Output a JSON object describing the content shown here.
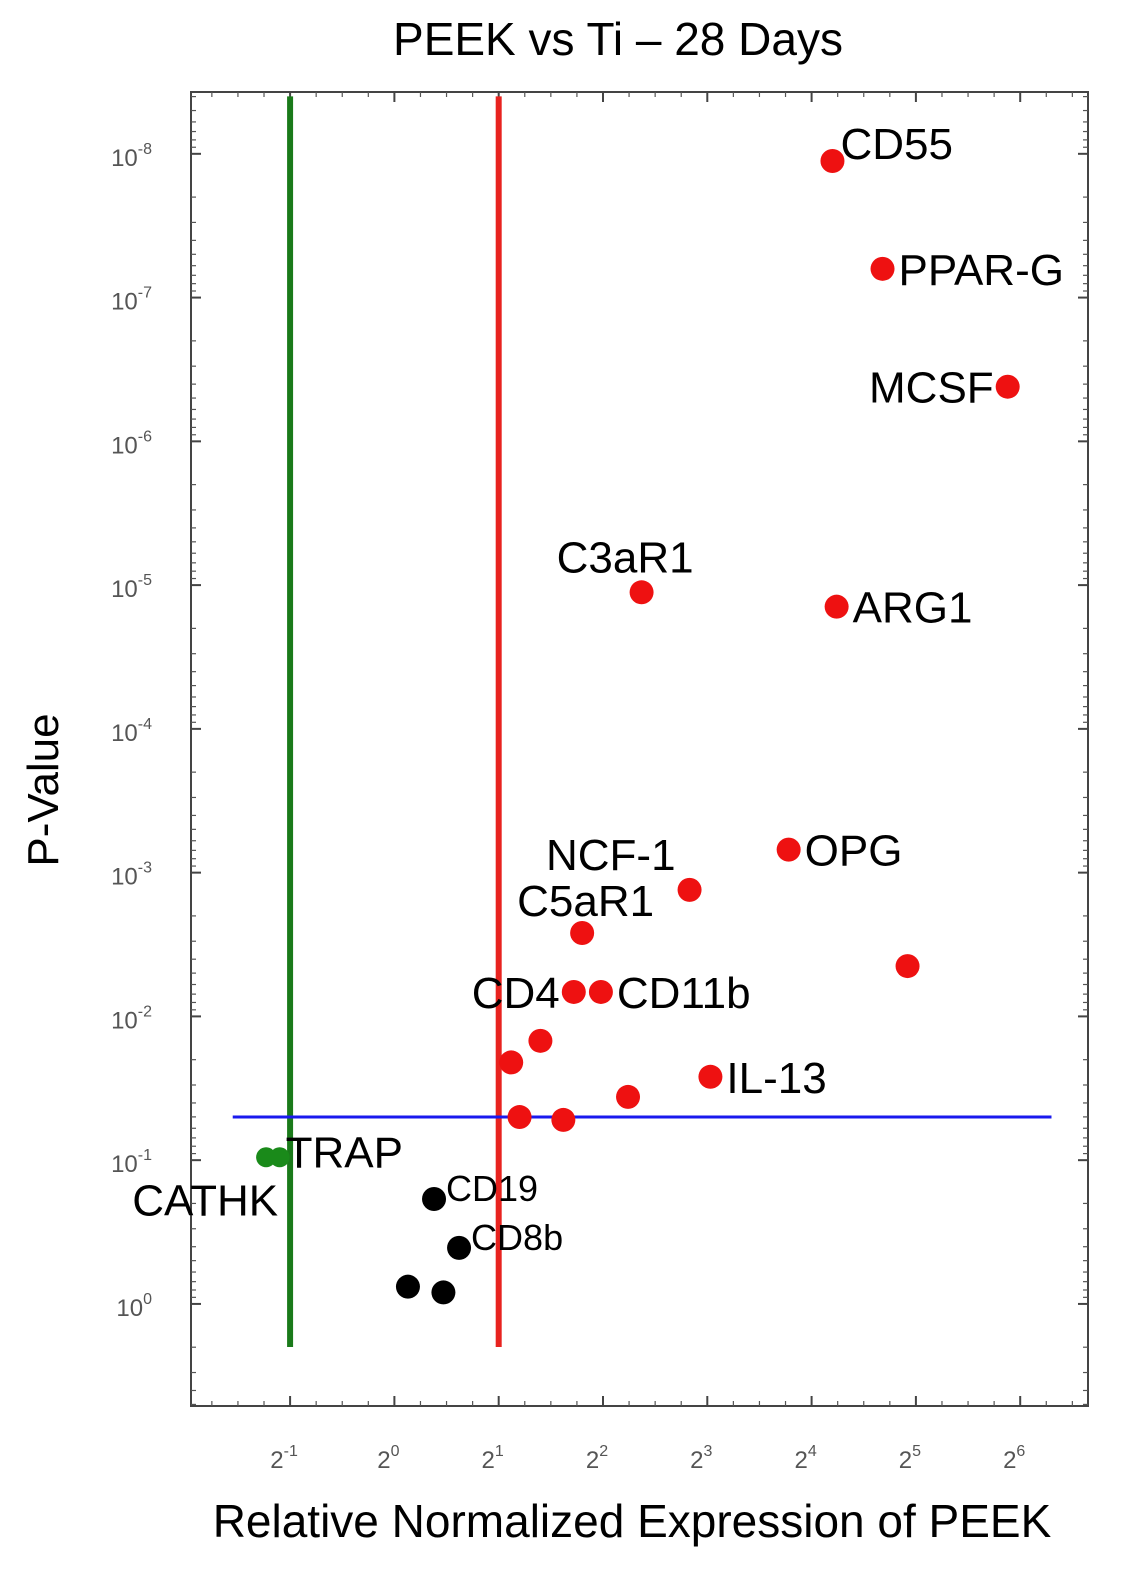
{
  "chart_data": {
    "type": "scatter",
    "title": "PEEK vs Ti – 28 Days",
    "xlabel": "Relative Normalized Expression of PEEK",
    "ylabel": "P-Value",
    "x_scale": "log2",
    "y_scale": "log10_inverted",
    "xlim_exp": [
      -1.95,
      6.65
    ],
    "ylim_exp": [
      -8.43,
      0.71
    ],
    "x_ticks": [
      {
        "exp": -1,
        "base": "2",
        "sup": "-1"
      },
      {
        "exp": 0,
        "base": "2",
        "sup": "0"
      },
      {
        "exp": 1,
        "base": "2",
        "sup": "1"
      },
      {
        "exp": 2,
        "base": "2",
        "sup": "2"
      },
      {
        "exp": 3,
        "base": "2",
        "sup": "3"
      },
      {
        "exp": 4,
        "base": "2",
        "sup": "4"
      },
      {
        "exp": 5,
        "base": "2",
        "sup": "5"
      },
      {
        "exp": 6,
        "base": "2",
        "sup": "6"
      }
    ],
    "y_ticks": [
      {
        "exp": -8,
        "base": "10",
        "sup": "-8"
      },
      {
        "exp": -7,
        "base": "10",
        "sup": "-7"
      },
      {
        "exp": -6,
        "base": "10",
        "sup": "-6"
      },
      {
        "exp": -5,
        "base": "10",
        "sup": "-5"
      },
      {
        "exp": -4,
        "base": "10",
        "sup": "-4"
      },
      {
        "exp": -3,
        "base": "10",
        "sup": "-3"
      },
      {
        "exp": -2,
        "base": "10",
        "sup": "-2"
      },
      {
        "exp": -1,
        "base": "10",
        "sup": "-1"
      },
      {
        "exp": 0,
        "base": "10",
        "sup": "0"
      }
    ],
    "threshold_lines": [
      {
        "name": "fold-change-down",
        "orientation": "vertical",
        "x_exp": -1,
        "from_y_exp": -8.4,
        "to_y_exp": 0.3,
        "color": "#1a7a1a"
      },
      {
        "name": "fold-change-up",
        "orientation": "vertical",
        "x_exp": 1,
        "from_y_exp": -8.4,
        "to_y_exp": 0.3,
        "color": "#e8231f"
      },
      {
        "name": "p-threshold",
        "orientation": "horizontal",
        "y_exp": -1.3,
        "from_x_exp": -1.55,
        "to_x_exp": 6.3,
        "color": "#1a1aee"
      }
    ],
    "colors": {
      "up": "#ee1111",
      "down": "#1a8a1a",
      "ns": "#000000"
    },
    "points": [
      {
        "label": "CD55",
        "x_exp": 4.2,
        "y_exp": -7.95,
        "group": "up",
        "label_pos": "right-up"
      },
      {
        "label": "PPAR-G",
        "x_exp": 4.68,
        "y_exp": -7.2,
        "group": "up",
        "label_pos": "right"
      },
      {
        "label": "MCSF",
        "x_exp": 5.88,
        "y_exp": -6.38,
        "group": "up",
        "label_pos": "left"
      },
      {
        "label": "C3aR1",
        "x_exp": 2.37,
        "y_exp": -4.95,
        "group": "up",
        "label_pos": "above-left"
      },
      {
        "label": "ARG1",
        "x_exp": 4.24,
        "y_exp": -4.85,
        "group": "up",
        "label_pos": "right"
      },
      {
        "label": "OPG",
        "x_exp": 3.78,
        "y_exp": -3.16,
        "group": "up",
        "label_pos": "right"
      },
      {
        "label": "NCF-1",
        "x_exp": 2.83,
        "y_exp": -2.88,
        "group": "up",
        "label_pos": "left-up"
      },
      {
        "label": "C5aR1",
        "x_exp": 1.8,
        "y_exp": -2.58,
        "group": "up",
        "label_pos": "above-left"
      },
      {
        "label": "",
        "x_exp": 4.92,
        "y_exp": -2.35,
        "group": "up",
        "label_pos": "none"
      },
      {
        "label": "CD4",
        "x_exp": 1.72,
        "y_exp": -2.17,
        "group": "up",
        "label_pos": "left"
      },
      {
        "label": "CD11b",
        "x_exp": 1.98,
        "y_exp": -2.17,
        "group": "up",
        "label_pos": "right"
      },
      {
        "label": "",
        "x_exp": 1.4,
        "y_exp": -1.83,
        "group": "up",
        "label_pos": "none"
      },
      {
        "label": "",
        "x_exp": 1.12,
        "y_exp": -1.68,
        "group": "up",
        "label_pos": "none"
      },
      {
        "label": "IL-13",
        "x_exp": 3.03,
        "y_exp": -1.58,
        "group": "up",
        "label_pos": "right"
      },
      {
        "label": "",
        "x_exp": 2.24,
        "y_exp": -1.44,
        "group": "up",
        "label_pos": "none"
      },
      {
        "label": "",
        "x_exp": 1.2,
        "y_exp": -1.3,
        "group": "up",
        "label_pos": "none"
      },
      {
        "label": "",
        "x_exp": 1.62,
        "y_exp": -1.28,
        "group": "up",
        "label_pos": "none"
      },
      {
        "label": "TRAP",
        "x_exp": -1.1,
        "y_exp": -1.02,
        "group": "down",
        "label_pos": "right"
      },
      {
        "label": "CATHK",
        "x_exp": -1.23,
        "y_exp": -1.02,
        "group": "down",
        "label_pos": "below-left"
      },
      {
        "label": "CD19",
        "x_exp": 0.38,
        "y_exp": -0.73,
        "group": "ns",
        "label_pos": "right"
      },
      {
        "label": "CD8b",
        "x_exp": 0.62,
        "y_exp": -0.39,
        "group": "ns",
        "label_pos": "right"
      },
      {
        "label": "",
        "x_exp": 0.13,
        "y_exp": -0.12,
        "group": "ns",
        "label_pos": "none"
      },
      {
        "label": "",
        "x_exp": 0.47,
        "y_exp": -0.08,
        "group": "ns",
        "label_pos": "none"
      }
    ]
  }
}
